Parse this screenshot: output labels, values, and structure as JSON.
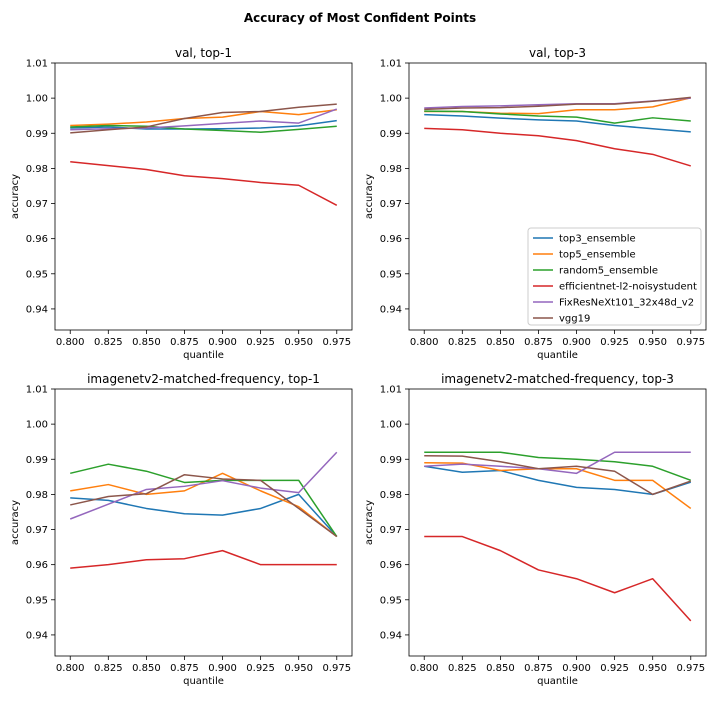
{
  "figure_title": "Accuracy of Most Confident Points",
  "colors": {
    "top3_ensemble": "#1f77b4",
    "top5_ensemble": "#ff7f0e",
    "random5_ensemble": "#2ca02c",
    "efficientnet-l2-noisystudent": "#d62728",
    "FixResNeXt101_32x48d_v2": "#9467bd",
    "vgg19": "#8c564b"
  },
  "chart_data": [
    {
      "type": "line",
      "title": "val, top-1",
      "xlabel": "quantile",
      "ylabel": "accuracy",
      "xlim": [
        0.79,
        0.985
      ],
      "ylim": [
        0.934,
        1.01
      ],
      "xticks": [
        "0.800",
        "0.825",
        "0.850",
        "0.875",
        "0.900",
        "0.925",
        "0.950",
        "0.975"
      ],
      "yticks": [
        "0.94",
        "0.95",
        "0.96",
        "0.97",
        "0.98",
        "0.99",
        "1.00",
        "1.01"
      ],
      "legend": false,
      "x": [
        0.8,
        0.825,
        0.85,
        0.875,
        0.9,
        0.925,
        0.95,
        0.975
      ],
      "series": [
        {
          "name": "top3_ensemble",
          "values": [
            0.9915,
            0.9918,
            0.9912,
            0.9912,
            0.9913,
            0.9915,
            0.9921,
            0.9936
          ]
        },
        {
          "name": "top5_ensemble",
          "values": [
            0.9922,
            0.9926,
            0.9932,
            0.9942,
            0.9946,
            0.9962,
            0.9953,
            0.9967
          ]
        },
        {
          "name": "random5_ensemble",
          "values": [
            0.9918,
            0.9922,
            0.992,
            0.9912,
            0.9908,
            0.9903,
            0.9911,
            0.992
          ]
        },
        {
          "name": "efficientnet-l2-noisystudent",
          "values": [
            0.9819,
            0.9808,
            0.9797,
            0.9779,
            0.9771,
            0.976,
            0.9752,
            0.9695
          ]
        },
        {
          "name": "FixResNeXt101_32x48d_v2",
          "values": [
            0.991,
            0.9913,
            0.9915,
            0.9921,
            0.9928,
            0.9935,
            0.9929,
            0.9969
          ]
        },
        {
          "name": "vgg19",
          "values": [
            0.9901,
            0.991,
            0.9918,
            0.9942,
            0.9959,
            0.9962,
            0.9974,
            0.9983
          ]
        }
      ]
    },
    {
      "type": "line",
      "title": "val, top-3",
      "xlabel": "quantile",
      "ylabel": "accuracy",
      "xlim": [
        0.79,
        0.985
      ],
      "ylim": [
        0.934,
        1.01
      ],
      "xticks": [
        "0.800",
        "0.825",
        "0.850",
        "0.875",
        "0.900",
        "0.925",
        "0.950",
        "0.975"
      ],
      "yticks": [
        "0.94",
        "0.95",
        "0.96",
        "0.97",
        "0.98",
        "0.99",
        "1.00",
        "1.01"
      ],
      "legend": "lower-right",
      "x": [
        0.8,
        0.825,
        0.85,
        0.875,
        0.9,
        0.925,
        0.95,
        0.975
      ],
      "series": [
        {
          "name": "top3_ensemble",
          "values": [
            0.9953,
            0.9949,
            0.9943,
            0.9938,
            0.9935,
            0.9922,
            0.9913,
            0.9904
          ]
        },
        {
          "name": "top5_ensemble",
          "values": [
            0.9962,
            0.9962,
            0.9957,
            0.9956,
            0.9967,
            0.9967,
            0.9975,
            1.0001
          ]
        },
        {
          "name": "random5_ensemble",
          "values": [
            0.9963,
            0.9962,
            0.9955,
            0.9949,
            0.9946,
            0.9929,
            0.9944,
            0.9935
          ]
        },
        {
          "name": "efficientnet-l2-noisystudent",
          "values": [
            0.9914,
            0.991,
            0.99,
            0.9893,
            0.9879,
            0.9856,
            0.984,
            0.9807
          ]
        },
        {
          "name": "FixResNeXt101_32x48d_v2",
          "values": [
            0.9972,
            0.9976,
            0.9978,
            0.9981,
            0.9984,
            0.9984,
            0.9992,
            1.0
          ]
        },
        {
          "name": "vgg19",
          "values": [
            0.9968,
            0.9972,
            0.9973,
            0.9977,
            0.9983,
            0.9983,
            0.9991,
            1.0002
          ]
        }
      ]
    },
    {
      "type": "line",
      "title": "imagenetv2-matched-frequency, top-1",
      "xlabel": "quantile",
      "ylabel": "accuracy",
      "xlim": [
        0.79,
        0.985
      ],
      "ylim": [
        0.934,
        1.01
      ],
      "xticks": [
        "0.800",
        "0.825",
        "0.850",
        "0.875",
        "0.900",
        "0.925",
        "0.950",
        "0.975"
      ],
      "yticks": [
        "0.94",
        "0.95",
        "0.96",
        "0.97",
        "0.98",
        "0.99",
        "1.00",
        "1.01"
      ],
      "legend": false,
      "x": [
        0.8,
        0.825,
        0.85,
        0.875,
        0.9,
        0.925,
        0.95,
        0.975
      ],
      "series": [
        {
          "name": "top3_ensemble",
          "values": [
            0.979,
            0.9783,
            0.976,
            0.9745,
            0.9741,
            0.976,
            0.98,
            0.968
          ]
        },
        {
          "name": "top5_ensemble",
          "values": [
            0.981,
            0.9828,
            0.98,
            0.981,
            0.986,
            0.981,
            0.9765,
            0.968
          ]
        },
        {
          "name": "random5_ensemble",
          "values": [
            0.986,
            0.9886,
            0.9866,
            0.9834,
            0.984,
            0.984,
            0.984,
            0.968
          ]
        },
        {
          "name": "efficientnet-l2-noisystudent",
          "values": [
            0.959,
            0.96,
            0.9614,
            0.9617,
            0.964,
            0.96,
            0.96,
            0.96
          ]
        },
        {
          "name": "FixResNeXt101_32x48d_v2",
          "values": [
            0.973,
            0.9772,
            0.9814,
            0.9823,
            0.9839,
            0.9818,
            0.9805,
            0.992
          ]
        },
        {
          "name": "vgg19",
          "values": [
            0.977,
            0.9794,
            0.9802,
            0.9856,
            0.9844,
            0.984,
            0.976,
            0.968
          ]
        }
      ]
    },
    {
      "type": "line",
      "title": "imagenetv2-matched-frequency, top-3",
      "xlabel": "quantile",
      "ylabel": "accuracy",
      "xlim": [
        0.79,
        0.985
      ],
      "ylim": [
        0.934,
        1.01
      ],
      "xticks": [
        "0.800",
        "0.825",
        "0.850",
        "0.875",
        "0.900",
        "0.925",
        "0.950",
        "0.975"
      ],
      "yticks": [
        "0.94",
        "0.95",
        "0.96",
        "0.97",
        "0.98",
        "0.99",
        "1.00",
        "1.01"
      ],
      "legend": false,
      "x": [
        0.8,
        0.825,
        0.85,
        0.875,
        0.9,
        0.925,
        0.95,
        0.975
      ],
      "series": [
        {
          "name": "top3_ensemble",
          "values": [
            0.988,
            0.9863,
            0.9868,
            0.984,
            0.982,
            0.9814,
            0.98,
            0.9835
          ]
        },
        {
          "name": "top5_ensemble",
          "values": [
            0.989,
            0.9889,
            0.9868,
            0.9873,
            0.9873,
            0.984,
            0.984,
            0.976
          ]
        },
        {
          "name": "random5_ensemble",
          "values": [
            0.992,
            0.992,
            0.992,
            0.9905,
            0.99,
            0.9893,
            0.988,
            0.984
          ]
        },
        {
          "name": "efficientnet-l2-noisystudent",
          "values": [
            0.968,
            0.968,
            0.964,
            0.9585,
            0.956,
            0.952,
            0.956,
            0.944
          ]
        },
        {
          "name": "FixResNeXt101_32x48d_v2",
          "values": [
            0.988,
            0.9886,
            0.988,
            0.9873,
            0.986,
            0.992,
            0.992,
            0.992
          ]
        },
        {
          "name": "vgg19",
          "values": [
            0.991,
            0.9909,
            0.9893,
            0.9873,
            0.988,
            0.9866,
            0.98,
            0.9838
          ]
        }
      ]
    }
  ]
}
